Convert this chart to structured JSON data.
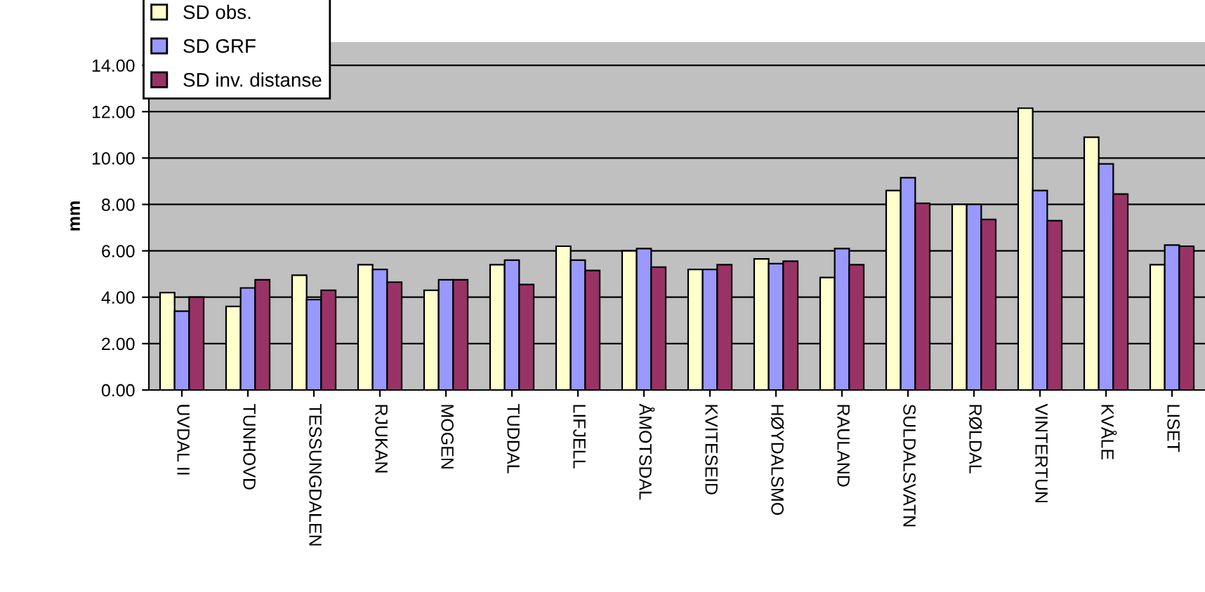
{
  "chart_data": {
    "type": "bar",
    "ylabel": "mm",
    "categories": [
      "UVDAL II",
      "TUNHOVD",
      "TESSUNGDALEN",
      "RJUKAN",
      "MOGEN",
      "TUDDAL",
      "LIFJELL",
      "ÅMOTSDAL",
      "KVITESEID",
      "HØYDALSMO",
      "RAULAND",
      "SULDALSVATN",
      "RØLDAL",
      "VINTERTUN",
      "KVÅLE",
      "LISET"
    ],
    "series": [
      {
        "name": "SD obs.",
        "color": "#ffffcc",
        "values": [
          4.2,
          3.6,
          4.95,
          5.4,
          4.3,
          5.4,
          6.2,
          6.0,
          5.2,
          5.65,
          4.85,
          8.6,
          8.0,
          12.15,
          10.9,
          5.4
        ]
      },
      {
        "name": "SD GRF",
        "color": "#9999ff",
        "values": [
          3.4,
          4.4,
          3.9,
          5.2,
          4.75,
          5.6,
          5.6,
          6.1,
          5.2,
          5.45,
          6.1,
          9.15,
          8.0,
          8.6,
          9.75,
          6.25
        ]
      },
      {
        "name": "SD inv. distanse",
        "color": "#993366",
        "values": [
          4.0,
          4.75,
          4.3,
          4.65,
          4.75,
          4.55,
          5.15,
          5.3,
          5.4,
          5.55,
          5.4,
          8.05,
          7.35,
          7.3,
          8.45,
          6.2
        ]
      }
    ],
    "ylim": [
      0,
      15
    ],
    "yticks": [
      {
        "value": 0,
        "label": "0.00"
      },
      {
        "value": 2,
        "label": "2.00"
      },
      {
        "value": 4,
        "label": "4.00"
      },
      {
        "value": 6,
        "label": "6.00"
      },
      {
        "value": 8,
        "label": "8.00"
      },
      {
        "value": 10,
        "label": "10.00"
      },
      {
        "value": 12,
        "label": "12.00"
      },
      {
        "value": 14,
        "label": "14.00"
      }
    ],
    "grid": "y",
    "legend": "top left"
  }
}
